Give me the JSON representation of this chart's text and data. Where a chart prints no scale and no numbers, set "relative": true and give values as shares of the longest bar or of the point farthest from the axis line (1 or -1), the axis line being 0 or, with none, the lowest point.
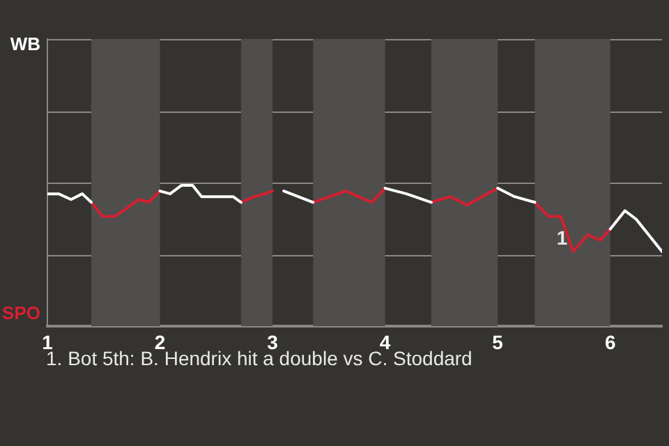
{
  "chart_data": {
    "type": "line",
    "relative": true,
    "x": [
      1.0,
      1.1,
      1.21,
      1.31,
      1.39,
      1.49,
      1.6,
      1.71,
      1.81,
      1.9,
      2,
      2.09,
      2.19,
      2.29,
      2.37,
      2.65,
      2.72,
      2.84,
      2.93,
      3.0,
      3.1,
      3.36,
      3.51,
      3.65,
      3.88,
      4,
      4.19,
      4.41,
      4.58,
      4.73,
      4.86,
      5,
      5.15,
      5.33,
      5.45,
      5.56,
      5.67,
      5.8,
      5.91,
      6,
      6.13,
      6.23,
      6.46
    ],
    "series": [
      {
        "color": "#ffffff",
        "values": [
          0.94,
          0.94,
          0.9,
          0.94,
          0.88,
          null,
          null,
          null,
          null,
          null,
          0.96,
          0.94,
          1,
          1,
          0.92,
          0.92,
          0.88,
          null,
          null,
          null,
          0.96,
          0.88,
          null,
          null,
          null,
          0.98,
          0.94,
          0.88,
          null,
          null,
          null,
          0.98,
          0.92,
          0.88,
          null,
          null,
          null,
          null,
          null,
          0.69,
          0.82,
          0.76,
          0.53
        ]
      },
      {
        "color": "#d42030",
        "values": [
          null,
          null,
          null,
          null,
          0.88,
          0.78,
          0.78,
          0.84,
          0.9,
          0.88,
          0.96,
          null,
          null,
          null,
          null,
          null,
          0.88,
          0.92,
          0.94,
          0.96,
          null,
          0.88,
          0.92,
          0.96,
          0.88,
          0.98,
          null,
          0.88,
          0.92,
          0.86,
          0.92,
          0.98,
          null,
          0.88,
          0.78,
          0.78,
          0.53,
          0.65,
          0.61,
          0.69,
          null,
          null,
          null
        ]
      }
    ],
    "xlim": [
      1,
      6.46
    ],
    "xticks": [
      1,
      2,
      3,
      4,
      5,
      6
    ],
    "bands": [
      {
        "axis": "x",
        "from": 1.39,
        "to": 2,
        "color": "#4f4e4c"
      },
      {
        "axis": "x",
        "from": 2.72,
        "to": 3,
        "color": "#4f4e4c"
      },
      {
        "axis": "x",
        "from": 3.36,
        "to": 4,
        "color": "#4f4e4c"
      },
      {
        "axis": "x",
        "from": 4.41,
        "to": 5,
        "color": "#4f4e4c"
      },
      {
        "axis": "x",
        "from": 5.33,
        "to": 6,
        "color": "#4f4e4c"
      }
    ],
    "annotations": [
      "WB",
      "SPO",
      {
        "text": "1",
        "x": 5.67,
        "y": 0.53
      },
      "1. Bot 5th: B. Hendrix hit a double vs C. Stoddard"
    ],
    "ref_lines": [
      {
        "axis": "y",
        "value": 0.51,
        "color": "#8a8885"
      },
      {
        "axis": "y",
        "value": 1.02,
        "color": "#8a8885"
      },
      {
        "axis": "y",
        "value": 1.53,
        "color": "#8a8885"
      },
      {
        "axis": "y",
        "value": 2.04,
        "color": "#8a8885"
      }
    ],
    "legend": false,
    "marker": "none",
    "line_style": "solid"
  }
}
